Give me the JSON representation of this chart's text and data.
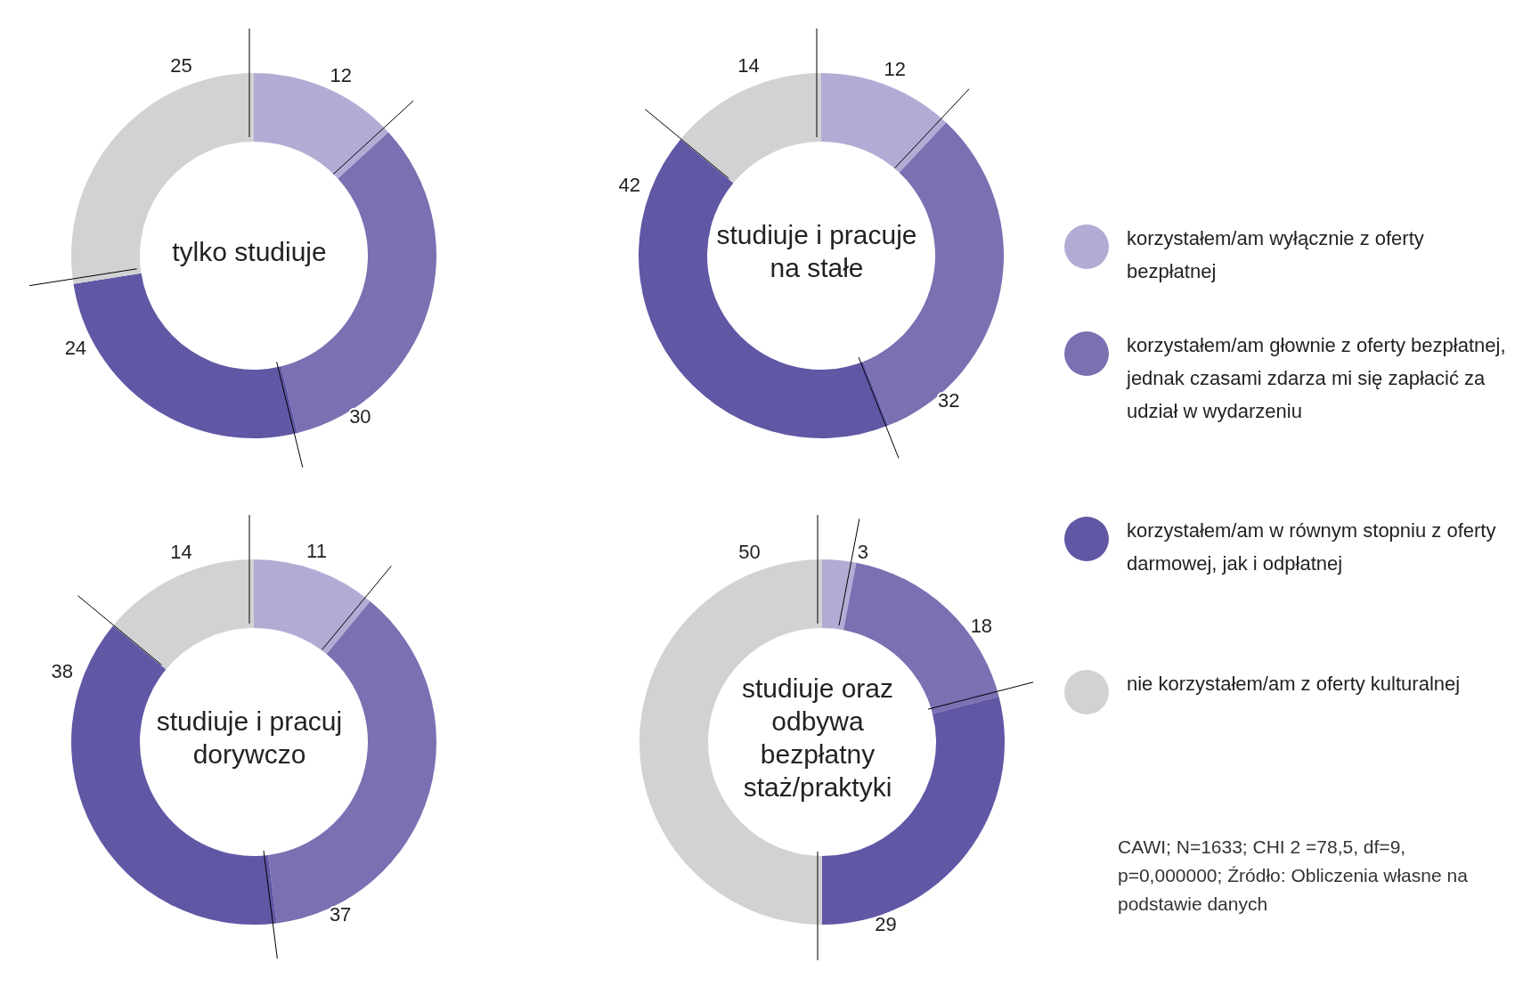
{
  "chart_data": [
    {
      "type": "donut",
      "title": "tylko studiuje",
      "categories": [
        "korzystałem/am wyłącznie z oferty bezpłatnej",
        "korzystałem/am głownie z oferty bezpłatnej, jednak czasami zdarza mi się zapłacić za udział w wydarzeniu",
        "korzystałem/am w równym stopniu z oferty darmowej, jak i odpłatnej",
        "nie korzystałem/am z oferty kulturalnej"
      ],
      "values": [
        12,
        30,
        24,
        25
      ],
      "colors": [
        "#b2acd5",
        "#7a70b2",
        "#6057a5",
        "#d1d2d4"
      ],
      "data_labels": true,
      "legend": "right"
    },
    {
      "type": "donut",
      "title": "studiuje i pracuje na stałe",
      "values": [
        12,
        32,
        42,
        14
      ],
      "colors": [
        "#b2acd5",
        "#7a70b2",
        "#6057a5",
        "#d1d2d4"
      ],
      "data_labels": true
    },
    {
      "type": "donut",
      "title": "studiuje i pracuj dorywczo",
      "values": [
        11,
        37,
        38,
        14
      ],
      "colors": [
        "#b2acd5",
        "#7a70b2",
        "#6057a5",
        "#d1d2d4"
      ],
      "data_labels": true
    },
    {
      "type": "donut",
      "title": "studiuje oraz odbywa bezpłatny staż/praktyki",
      "values": [
        3,
        18,
        29,
        50
      ],
      "colors": [
        "#b2acd5",
        "#7a70b2",
        "#6057a5",
        "#d1d2d4"
      ],
      "data_labels": true,
      "annotations": [
        "CAWI; N=1633; CHI 2 =78,5, df=9, p=0,000000; Źródło: Obliczenia własne na podstawie danych"
      ]
    }
  ]
}
